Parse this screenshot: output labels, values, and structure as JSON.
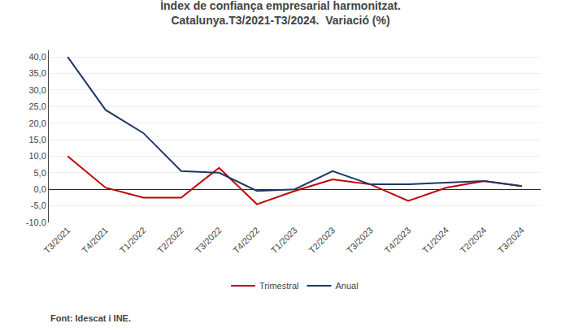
{
  "chart_data": {
    "type": "line",
    "title": "Índex de confiança empresarial harmonitzat.\nCatalunya.T3/2021-T3/2024.  Variació (%)",
    "categories": [
      "T3/2021",
      "T4/2021",
      "T1/2022",
      "T2/2022",
      "T3/2022",
      "T4/2022",
      "T1/2023",
      "T2/2023",
      "T3/2023",
      "T4/2023",
      "T1/2024",
      "T2/2024",
      "T3/2024"
    ],
    "series": [
      {
        "name": "Trimestral",
        "color": "#c00000",
        "values": [
          10.0,
          0.5,
          -2.5,
          -2.5,
          6.5,
          -4.5,
          -0.5,
          3.0,
          1.5,
          -3.5,
          0.5,
          2.5,
          1.0
        ]
      },
      {
        "name": "Anual",
        "color": "#1f3864",
        "values": [
          40.0,
          24.0,
          17.0,
          5.5,
          5.0,
          -0.5,
          0.0,
          5.5,
          1.5,
          1.5,
          2.0,
          2.5,
          1.0
        ]
      }
    ],
    "ylim": [
      -10.0,
      42.0
    ],
    "yticks": [
      {
        "value": -10.0,
        "label": "-10,0"
      },
      {
        "value": -5.0,
        "label": "-5,0"
      },
      {
        "value": 0.0,
        "label": "0,0"
      },
      {
        "value": 5.0,
        "label": "5,0"
      },
      {
        "value": 10.0,
        "label": "10,0"
      },
      {
        "value": 15.0,
        "label": "15,0"
      },
      {
        "value": 20.0,
        "label": "20,0"
      },
      {
        "value": 25.0,
        "label": "25,0"
      },
      {
        "value": 30.0,
        "label": "30,0"
      },
      {
        "value": 35.0,
        "label": "35,0"
      },
      {
        "value": 40.0,
        "label": "40,0"
      }
    ],
    "grid": true,
    "legend": "bottom",
    "source": "Font: Idescat i INE."
  }
}
